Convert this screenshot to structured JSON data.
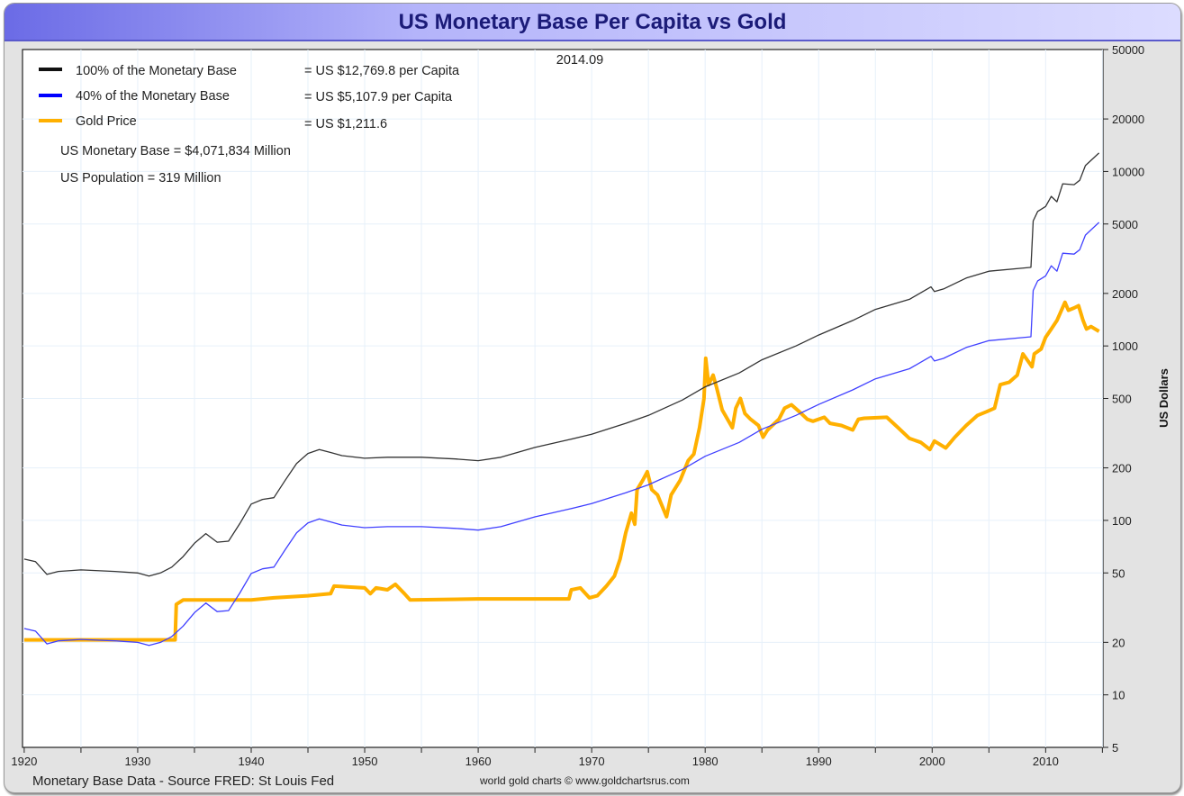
{
  "chart_data": {
    "type": "line",
    "title": "US Monetary Base Per Capita vs Gold",
    "date_label": "2014.09",
    "ylabel": "US Dollars",
    "xlabel": "",
    "y_scale": "log",
    "ylim": [
      5,
      50000
    ],
    "xlim": [
      1920,
      2015
    ],
    "grid": true,
    "legend_position": "top-left",
    "y_ticks": [
      "5",
      "10",
      "20",
      "50",
      "100",
      "200",
      "500",
      "1000",
      "2000",
      "5000",
      "10000",
      "20000",
      "50000"
    ],
    "x_ticks": [
      "1920",
      "1930",
      "1940",
      "1950",
      "1960",
      "1970",
      "1980",
      "1990",
      "2000",
      "2010"
    ],
    "legend": [
      {
        "name": "100% of the Monetary Base",
        "value_text": "= US $12,769.8 per Capita",
        "color": "#111111"
      },
      {
        "name": "40% of the Monetary Base",
        "value_text": "= US $5,107.9 per Capita",
        "color": "#0000ff"
      },
      {
        "name": "Gold Price",
        "value_text": "= US $1,211.6",
        "color": "#ffb000"
      }
    ],
    "notes": [
      "US Monetary Base = $4,071,834 Million",
      "US Population = 319 Million"
    ],
    "series": [
      {
        "name": "100% of the Monetary Base",
        "color": "#333333",
        "points": [
          [
            1920,
            60
          ],
          [
            1921,
            58
          ],
          [
            1922,
            49
          ],
          [
            1923,
            51
          ],
          [
            1925,
            52
          ],
          [
            1928,
            51
          ],
          [
            1930,
            50
          ],
          [
            1931,
            48
          ],
          [
            1932,
            50
          ],
          [
            1933,
            54
          ],
          [
            1934,
            62
          ],
          [
            1935,
            74
          ],
          [
            1936,
            84
          ],
          [
            1937,
            75
          ],
          [
            1938,
            76
          ],
          [
            1939,
            96
          ],
          [
            1940,
            124
          ],
          [
            1941,
            132
          ],
          [
            1942,
            135
          ],
          [
            1943,
            170
          ],
          [
            1944,
            212
          ],
          [
            1945,
            242
          ],
          [
            1946,
            255
          ],
          [
            1947,
            245
          ],
          [
            1948,
            235
          ],
          [
            1950,
            227
          ],
          [
            1952,
            230
          ],
          [
            1955,
            230
          ],
          [
            1958,
            225
          ],
          [
            1960,
            220
          ],
          [
            1962,
            230
          ],
          [
            1965,
            262
          ],
          [
            1968,
            290
          ],
          [
            1970,
            312
          ],
          [
            1973,
            360
          ],
          [
            1975,
            400
          ],
          [
            1978,
            490
          ],
          [
            1980,
            583
          ],
          [
            1983,
            700
          ],
          [
            1985,
            833
          ],
          [
            1988,
            1000
          ],
          [
            1990,
            1155
          ],
          [
            1993,
            1400
          ],
          [
            1995,
            1620
          ],
          [
            1998,
            1850
          ],
          [
            1999.9,
            2180
          ],
          [
            2000.2,
            2050
          ],
          [
            2001,
            2120
          ],
          [
            2003,
            2450
          ],
          [
            2005,
            2680
          ],
          [
            2008.7,
            2820
          ],
          [
            2008.9,
            5200
          ],
          [
            2009.3,
            5900
          ],
          [
            2010,
            6300
          ],
          [
            2010.5,
            7200
          ],
          [
            2011,
            6700
          ],
          [
            2011.5,
            8500
          ],
          [
            2012.5,
            8400
          ],
          [
            2013,
            8900
          ],
          [
            2013.5,
            10800
          ],
          [
            2014.7,
            12770
          ]
        ]
      },
      {
        "name": "40% of the Monetary Base",
        "color": "#4040ff",
        "points": [
          [
            1920,
            24
          ],
          [
            1921,
            23.2
          ],
          [
            1922,
            19.6
          ],
          [
            1923,
            20.4
          ],
          [
            1925,
            20.8
          ],
          [
            1928,
            20.4
          ],
          [
            1930,
            20
          ],
          [
            1931,
            19.2
          ],
          [
            1932,
            20
          ],
          [
            1933,
            21.6
          ],
          [
            1934,
            24.8
          ],
          [
            1935,
            29.6
          ],
          [
            1936,
            33.6
          ],
          [
            1937,
            30
          ],
          [
            1938,
            30.4
          ],
          [
            1939,
            38.4
          ],
          [
            1940,
            49.6
          ],
          [
            1941,
            52.8
          ],
          [
            1942,
            54
          ],
          [
            1943,
            68
          ],
          [
            1944,
            84.8
          ],
          [
            1945,
            96.8
          ],
          [
            1946,
            102
          ],
          [
            1947,
            98
          ],
          [
            1948,
            94
          ],
          [
            1950,
            90.8
          ],
          [
            1952,
            92
          ],
          [
            1955,
            92
          ],
          [
            1958,
            90
          ],
          [
            1960,
            88
          ],
          [
            1962,
            92
          ],
          [
            1965,
            104.8
          ],
          [
            1968,
            116
          ],
          [
            1970,
            124.8
          ],
          [
            1973,
            144
          ],
          [
            1975,
            160
          ],
          [
            1978,
            196
          ],
          [
            1980,
            233.2
          ],
          [
            1983,
            280
          ],
          [
            1985,
            333.2
          ],
          [
            1988,
            400
          ],
          [
            1990,
            462
          ],
          [
            1993,
            560
          ],
          [
            1995,
            648
          ],
          [
            1998,
            740
          ],
          [
            1999.9,
            872
          ],
          [
            2000.2,
            820
          ],
          [
            2001,
            848
          ],
          [
            2003,
            980
          ],
          [
            2005,
            1072
          ],
          [
            2008.7,
            1128
          ],
          [
            2008.9,
            2080
          ],
          [
            2009.3,
            2360
          ],
          [
            2010,
            2520
          ],
          [
            2010.5,
            2880
          ],
          [
            2011,
            2680
          ],
          [
            2011.5,
            3400
          ],
          [
            2012.5,
            3360
          ],
          [
            2013,
            3560
          ],
          [
            2013.5,
            4320
          ],
          [
            2014.7,
            5108
          ]
        ]
      },
      {
        "name": "Gold Price",
        "color": "#ffb000",
        "points": [
          [
            1920,
            20.67
          ],
          [
            1933.3,
            20.67
          ],
          [
            1933.4,
            33
          ],
          [
            1934,
            35
          ],
          [
            1940,
            35
          ],
          [
            1942,
            36
          ],
          [
            1945,
            37
          ],
          [
            1947,
            38
          ],
          [
            1947.3,
            42
          ],
          [
            1950,
            41
          ],
          [
            1950.5,
            38
          ],
          [
            1951,
            41
          ],
          [
            1952,
            40
          ],
          [
            1952.7,
            43
          ],
          [
            1953.5,
            38
          ],
          [
            1954,
            35
          ],
          [
            1960,
            35.5
          ],
          [
            1961,
            35.5
          ],
          [
            1968,
            35.5
          ],
          [
            1968.2,
            40
          ],
          [
            1969,
            41
          ],
          [
            1969.8,
            36
          ],
          [
            1970.5,
            37
          ],
          [
            1971.3,
            42
          ],
          [
            1972,
            48
          ],
          [
            1972.5,
            60
          ],
          [
            1973,
            85
          ],
          [
            1973.5,
            110
          ],
          [
            1973.8,
            95
          ],
          [
            1974,
            150
          ],
          [
            1974.5,
            170
          ],
          [
            1974.9,
            190
          ],
          [
            1975.3,
            150
          ],
          [
            1975.8,
            140
          ],
          [
            1976,
            130
          ],
          [
            1976.6,
            105
          ],
          [
            1977,
            140
          ],
          [
            1977.8,
            170
          ],
          [
            1978.5,
            220
          ],
          [
            1979,
            240
          ],
          [
            1979.5,
            340
          ],
          [
            1979.9,
            500
          ],
          [
            1980.05,
            850
          ],
          [
            1980.3,
            600
          ],
          [
            1980.7,
            680
          ],
          [
            1981,
            580
          ],
          [
            1981.5,
            430
          ],
          [
            1982.4,
            340
          ],
          [
            1982.7,
            440
          ],
          [
            1983.1,
            500
          ],
          [
            1983.5,
            410
          ],
          [
            1984,
            380
          ],
          [
            1984.7,
            350
          ],
          [
            1985.1,
            300
          ],
          [
            1985.5,
            330
          ],
          [
            1986.5,
            380
          ],
          [
            1987,
            440
          ],
          [
            1987.6,
            460
          ],
          [
            1988.3,
            420
          ],
          [
            1989,
            380
          ],
          [
            1989.5,
            370
          ],
          [
            1990.5,
            390
          ],
          [
            1991,
            360
          ],
          [
            1992,
            350
          ],
          [
            1993,
            330
          ],
          [
            1993.5,
            380
          ],
          [
            1994,
            385
          ],
          [
            1996,
            390
          ],
          [
            1997,
            340
          ],
          [
            1998,
            295
          ],
          [
            1999,
            280
          ],
          [
            1999.8,
            255
          ],
          [
            2000.2,
            285
          ],
          [
            2001.2,
            260
          ],
          [
            2002,
            300
          ],
          [
            2003,
            350
          ],
          [
            2004,
            400
          ],
          [
            2004.8,
            420
          ],
          [
            2005.5,
            440
          ],
          [
            2006,
            600
          ],
          [
            2006.8,
            620
          ],
          [
            2007.5,
            680
          ],
          [
            2008,
            900
          ],
          [
            2008.8,
            760
          ],
          [
            2009,
            900
          ],
          [
            2009.6,
            960
          ],
          [
            2010,
            1120
          ],
          [
            2010.5,
            1250
          ],
          [
            2011,
            1400
          ],
          [
            2011.7,
            1780
          ],
          [
            2012,
            1600
          ],
          [
            2012.5,
            1650
          ],
          [
            2012.9,
            1700
          ],
          [
            2013.3,
            1400
          ],
          [
            2013.6,
            1250
          ],
          [
            2014,
            1290
          ],
          [
            2014.7,
            1212
          ]
        ]
      }
    ]
  },
  "footer": {
    "source": "Monetary Base Data - Source FRED: St Louis Fed",
    "credit": "world gold charts © www.goldchartsrus.com"
  }
}
